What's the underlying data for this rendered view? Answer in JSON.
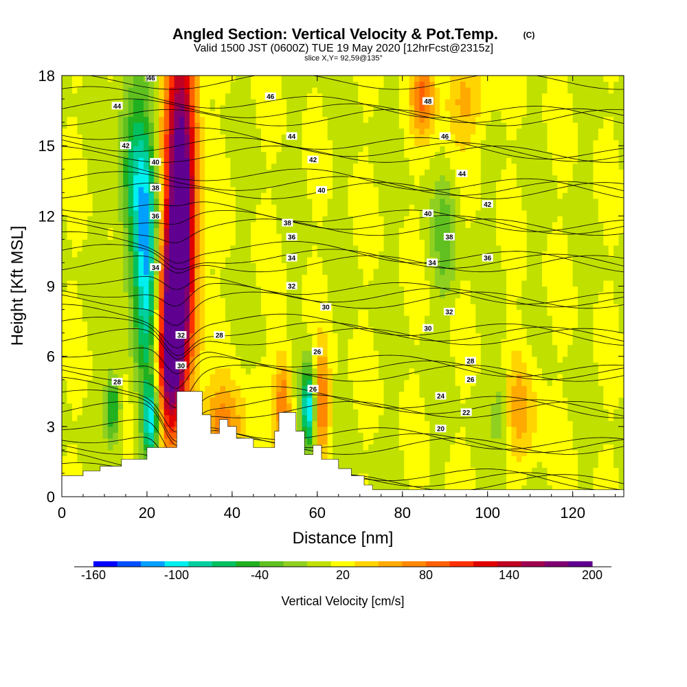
{
  "header": {
    "title": "Angled Section: Vertical Velocity & Pot.Temp.",
    "title_mark": "(C)",
    "valid_line": "Valid 1500 JST (0600Z) TUE 19 May 2020 [12hrFcst@2315z]",
    "slice_line": "slice X,Y= 92,59@135°"
  },
  "chart_data": {
    "type": "heatmap",
    "xlabel": "Distance [nm]",
    "ylabel": "Height [Kft MSL]",
    "xlim": [
      0,
      132
    ],
    "ylim": [
      0,
      18
    ],
    "xticks": [
      0,
      20,
      40,
      60,
      80,
      100,
      120
    ],
    "yticks": [
      0,
      3,
      6,
      9,
      12,
      15,
      18
    ],
    "grid": false,
    "colorbar": {
      "label": "Vertical Velocity [cm/s]",
      "min": -160,
      "max": 200,
      "tick_values": [
        -160,
        -100,
        -40,
        20,
        80,
        140,
        200
      ],
      "colors": [
        "#0000ff",
        "#0050ff",
        "#00a0ff",
        "#00f0f0",
        "#00d0a0",
        "#00c060",
        "#20b020",
        "#60c020",
        "#90d020",
        "#c0e000",
        "#ffff00",
        "#ffd400",
        "#ffaa00",
        "#ff8800",
        "#ff6000",
        "#ff3000",
        "#e00000",
        "#c00020",
        "#a00050",
        "#800070",
        "#600090"
      ]
    },
    "terrain": [
      [
        0,
        0.9
      ],
      [
        4,
        0.9
      ],
      [
        5,
        1.1
      ],
      [
        8,
        1.1
      ],
      [
        9,
        1.3
      ],
      [
        13,
        1.3
      ],
      [
        14,
        1.6
      ],
      [
        19,
        1.6
      ],
      [
        20,
        2.1
      ],
      [
        26,
        2.1
      ],
      [
        27,
        4.5
      ],
      [
        31,
        4.5
      ],
      [
        33,
        3.5
      ],
      [
        35,
        2.7
      ],
      [
        37,
        3.3
      ],
      [
        39,
        3.0
      ],
      [
        41,
        2.5
      ],
      [
        45,
        2.1
      ],
      [
        48,
        2.1
      ],
      [
        50,
        2.8
      ],
      [
        51,
        3.6
      ],
      [
        53,
        3.6
      ],
      [
        55,
        2.8
      ],
      [
        57,
        1.8
      ],
      [
        59,
        2.2
      ],
      [
        61,
        1.6
      ],
      [
        65,
        1.2
      ],
      [
        68,
        0.9
      ],
      [
        71,
        0.5
      ],
      [
        73,
        0.3
      ],
      [
        132,
        0.3
      ]
    ],
    "wind_field": [
      {
        "x": 28,
        "z": 13,
        "w": 200,
        "sx": 2.6,
        "sz": 5.5
      },
      {
        "x": 26,
        "z": 8,
        "w": 120,
        "sx": 2.4,
        "sz": 2.8
      },
      {
        "x": 25,
        "z": 5,
        "w": 90,
        "sx": 2.0,
        "sz": 1.8
      },
      {
        "x": 20,
        "z": 10,
        "w": -110,
        "sx": 2.0,
        "sz": 3.5
      },
      {
        "x": 21,
        "z": 3.2,
        "w": -110,
        "sx": 1.4,
        "sz": 1.2
      },
      {
        "x": 17,
        "z": 14,
        "w": -70,
        "sx": 2.4,
        "sz": 3.5
      },
      {
        "x": 12,
        "z": 3.8,
        "w": -80,
        "sx": 1.2,
        "sz": 1.0
      },
      {
        "x": 58,
        "z": 3.8,
        "w": -120,
        "sx": 1.2,
        "sz": 1.3
      },
      {
        "x": 61,
        "z": 4.0,
        "w": 80,
        "sx": 1.4,
        "sz": 1.5
      },
      {
        "x": 52,
        "z": 4.0,
        "w": 70,
        "sx": 1.4,
        "sz": 1.6
      },
      {
        "x": 38,
        "z": 3.0,
        "w": 60,
        "sx": 4.0,
        "sz": 1.3
      },
      {
        "x": 85,
        "z": 17.2,
        "w": 70,
        "sx": 2.0,
        "sz": 1.2
      },
      {
        "x": 95,
        "z": 17.0,
        "w": 40,
        "sx": 4.0,
        "sz": 1.3
      },
      {
        "x": 90,
        "z": 11.0,
        "w": -40,
        "sx": 2.0,
        "sz": 1.8
      },
      {
        "x": 108,
        "z": 3.8,
        "w": 40,
        "sx": 3.0,
        "sz": 1.8
      },
      {
        "x": 103,
        "z": 4.0,
        "w": -30,
        "sx": 1.5,
        "sz": 1.5
      }
    ],
    "isotherm_labels": [
      {
        "x": 21,
        "z": 17.9,
        "label": "46"
      },
      {
        "x": 13,
        "z": 16.7,
        "label": "44"
      },
      {
        "x": 15,
        "z": 15.0,
        "label": "42"
      },
      {
        "x": 22,
        "z": 14.3,
        "label": "40"
      },
      {
        "x": 22,
        "z": 13.2,
        "label": "38"
      },
      {
        "x": 22,
        "z": 12.0,
        "label": "36"
      },
      {
        "x": 22,
        "z": 9.8,
        "label": "34"
      },
      {
        "x": 13,
        "z": 4.9,
        "label": "28"
      },
      {
        "x": 28,
        "z": 6.9,
        "label": "32"
      },
      {
        "x": 28,
        "z": 5.6,
        "label": "30"
      },
      {
        "x": 37,
        "z": 6.9,
        "label": "28"
      },
      {
        "x": 49,
        "z": 17.1,
        "label": "46"
      },
      {
        "x": 54,
        "z": 15.4,
        "label": "44"
      },
      {
        "x": 59,
        "z": 14.4,
        "label": "42"
      },
      {
        "x": 61,
        "z": 13.1,
        "label": "40"
      },
      {
        "x": 53,
        "z": 11.7,
        "label": "38"
      },
      {
        "x": 54,
        "z": 11.1,
        "label": "36"
      },
      {
        "x": 54,
        "z": 10.2,
        "label": "34"
      },
      {
        "x": 54,
        "z": 9.0,
        "label": "32"
      },
      {
        "x": 62,
        "z": 8.1,
        "label": "30"
      },
      {
        "x": 60,
        "z": 6.2,
        "label": "26"
      },
      {
        "x": 59,
        "z": 4.6,
        "label": "26"
      },
      {
        "x": 86,
        "z": 16.9,
        "label": "48"
      },
      {
        "x": 90,
        "z": 15.4,
        "label": "46"
      },
      {
        "x": 94,
        "z": 13.8,
        "label": "44"
      },
      {
        "x": 100,
        "z": 12.5,
        "label": "42"
      },
      {
        "x": 86,
        "z": 12.1,
        "label": "40"
      },
      {
        "x": 91,
        "z": 11.1,
        "label": "38"
      },
      {
        "x": 87,
        "z": 10.0,
        "label": "34"
      },
      {
        "x": 100,
        "z": 10.2,
        "label": "36"
      },
      {
        "x": 91,
        "z": 7.9,
        "label": "32"
      },
      {
        "x": 86,
        "z": 7.2,
        "label": "30"
      },
      {
        "x": 96,
        "z": 5.8,
        "label": "28"
      },
      {
        "x": 96,
        "z": 5.0,
        "label": "26"
      },
      {
        "x": 89,
        "z": 4.3,
        "label": "24"
      },
      {
        "x": 95,
        "z": 3.6,
        "label": "22"
      },
      {
        "x": 89,
        "z": 2.9,
        "label": "20"
      }
    ]
  }
}
